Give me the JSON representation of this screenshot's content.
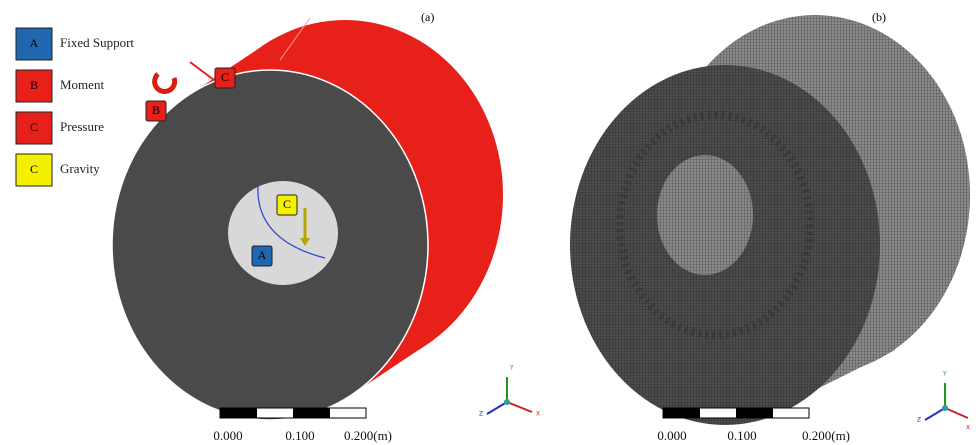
{
  "panels": [
    {
      "label": "(a)",
      "legend": [
        {
          "letter": "A",
          "text": "Fixed Support"
        },
        {
          "letter": "B",
          "text": "Moment"
        },
        {
          "letter": "C",
          "text": "Pressure"
        },
        {
          "letter": "C",
          "text": "Gravity"
        }
      ],
      "callouts": [
        "C",
        "B",
        "C",
        "A"
      ],
      "scale": [
        "0.000",
        "0.100",
        "0.200(m)"
      ],
      "triad": [
        "Y",
        "Z",
        "X"
      ]
    },
    {
      "label": "(b)",
      "scale": [
        "0.000",
        "0.100",
        "0.200(m)"
      ],
      "triad": [
        "Y",
        "Z",
        "X"
      ]
    }
  ]
}
